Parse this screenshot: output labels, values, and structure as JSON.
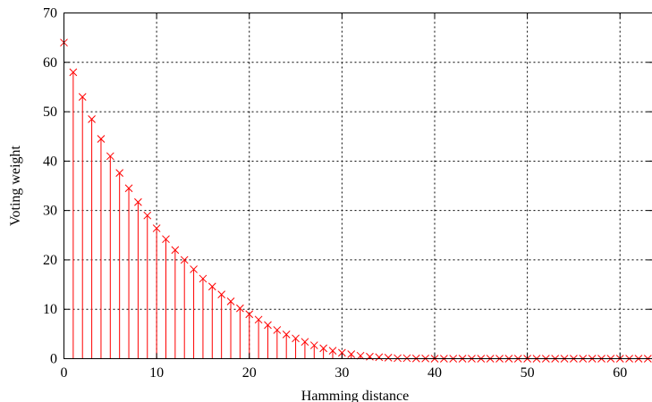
{
  "chart_data": {
    "type": "stem",
    "title": "",
    "xlabel": "Hamming distance",
    "ylabel": "Voting weight",
    "xlim": [
      0,
      63.5
    ],
    "ylim": [
      0,
      70
    ],
    "x_ticks": [
      0,
      10,
      20,
      30,
      40,
      50,
      60
    ],
    "y_ticks": [
      0,
      10,
      20,
      30,
      40,
      50,
      60,
      70
    ],
    "grid": true,
    "marker": "x",
    "colors": {
      "series": "#ff0000",
      "axes": "#000000",
      "grid": "#000000"
    },
    "series": [
      {
        "x": [
          0,
          1,
          2,
          3,
          4,
          5,
          6,
          7,
          8,
          9,
          10,
          11,
          12,
          13,
          14,
          15,
          16,
          17,
          18,
          19,
          20,
          21,
          22,
          23,
          24,
          25,
          26,
          27,
          28,
          29,
          30,
          31,
          32,
          33,
          34,
          35,
          36,
          37,
          38,
          39,
          40,
          41,
          42,
          43,
          44,
          45,
          46,
          47,
          48,
          49,
          50,
          51,
          52,
          53,
          54,
          55,
          56,
          57,
          58,
          59,
          60,
          61,
          62,
          63
        ],
        "values": [
          64,
          58,
          53,
          48.5,
          44.5,
          41,
          37.6,
          34.5,
          31.7,
          29,
          26.4,
          24.2,
          22,
          20,
          18.1,
          16.2,
          14.6,
          13,
          11.6,
          10.2,
          9,
          7.9,
          6.8,
          5.8,
          4.9,
          4.1,
          3.4,
          2.7,
          2.1,
          1.6,
          1.2,
          0.9,
          0.6,
          0.4,
          0.3,
          0.2,
          0.1,
          0.1,
          0.05,
          0.05,
          0,
          0,
          0,
          0,
          0,
          0,
          0,
          0,
          0,
          0,
          0,
          0,
          0,
          0,
          0,
          0,
          0,
          0,
          0,
          0,
          0,
          0,
          0,
          0
        ]
      }
    ]
  }
}
